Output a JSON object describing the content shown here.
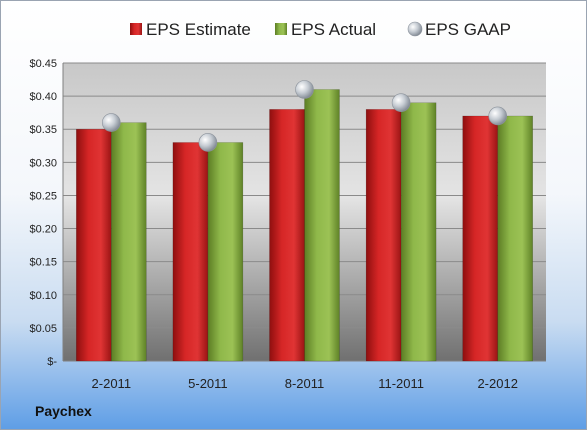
{
  "company": "Paychex",
  "chart_data": {
    "type": "bar",
    "categories": [
      "2-2011",
      "5-2011",
      "8-2011",
      "11-2011",
      "2-2012"
    ],
    "series": [
      {
        "name": "EPS Estimate",
        "kind": "bar",
        "color": "#c81e1e",
        "values": [
          0.35,
          0.33,
          0.38,
          0.38,
          0.37
        ]
      },
      {
        "name": "EPS Actual",
        "kind": "bar",
        "color": "#7fa83a",
        "values": [
          0.36,
          0.33,
          0.41,
          0.39,
          0.37
        ]
      },
      {
        "name": "EPS GAAP",
        "kind": "marker",
        "color": "#b8bec6",
        "values": [
          0.36,
          0.33,
          0.41,
          0.39,
          0.37
        ]
      }
    ],
    "ylim": [
      0,
      0.45
    ],
    "yticks": [
      0,
      0.05,
      0.1,
      0.15,
      0.2,
      0.25,
      0.3,
      0.35,
      0.4,
      0.45
    ],
    "ytick_labels": [
      "$-",
      "$0.05",
      "$0.10",
      "$0.15",
      "$0.20",
      "$0.25",
      "$0.30",
      "$0.35",
      "$0.40",
      "$0.45"
    ],
    "grid": true,
    "legend_position": "top"
  }
}
